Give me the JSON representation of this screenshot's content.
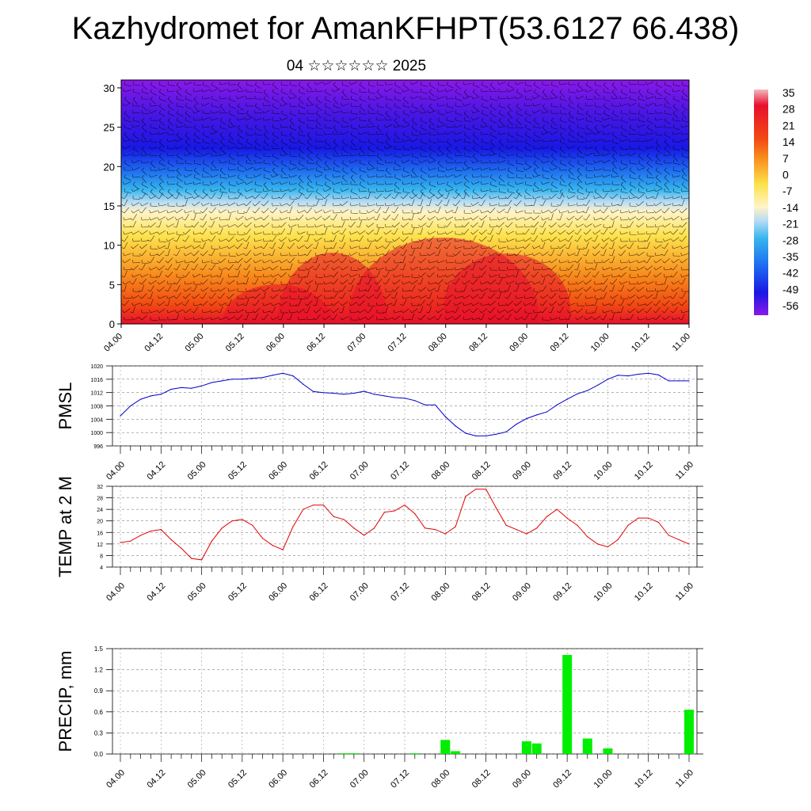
{
  "title": "Kazhydromet for AmanKFHPT(53.6127 66.438)",
  "subtitle": "04 ☆☆☆☆☆☆ 2025",
  "time_labels": [
    "04.00",
    "04.12",
    "05.00",
    "05.12",
    "06.00",
    "06.12",
    "07.00",
    "07.12",
    "08.00",
    "08.12",
    "09.00",
    "09.12",
    "10.00",
    "10.12",
    "11.00"
  ],
  "chart_data": [
    {
      "type": "heatmap",
      "name": "cross-section",
      "y_ticks": [
        0,
        5,
        10,
        15,
        20,
        25,
        30
      ],
      "ylim": [
        0,
        31
      ],
      "colorbar": {
        "labels": [
          "35",
          "28",
          "21",
          "14",
          "7",
          "0",
          "-7",
          "-14",
          "-21",
          "-28",
          "-35",
          "-42",
          "-49",
          "-56"
        ],
        "colors": {
          "top": "#f4b8bf",
          "warm1": "#e8102c",
          "warm2": "#f24a13",
          "warm3": "#f88a1c",
          "mid": "#fde24c",
          "pale": "#fff4c8",
          "cool1": "#b9dcf4",
          "cool2": "#36b5ee",
          "cool3": "#1e6cf0",
          "cold1": "#1818e4",
          "cold2": "#4816e4",
          "bottom": "#8a18e8"
        }
      }
    },
    {
      "type": "line",
      "name": "PMSL",
      "ylabel": "PMSL",
      "ylim": [
        996,
        1020
      ],
      "y_ticks": [
        996,
        1000,
        1004,
        1008,
        1012,
        1016,
        1020
      ],
      "x": [
        0,
        3,
        6,
        9,
        12,
        15,
        18,
        21,
        24,
        27,
        30,
        33,
        36,
        39,
        42,
        45,
        48,
        51,
        54,
        57,
        60,
        63,
        66,
        69,
        72,
        75,
        78,
        81,
        84,
        87,
        90,
        93,
        96,
        99,
        102,
        105,
        108,
        111,
        114,
        117,
        120,
        123,
        126,
        129,
        132,
        135,
        138,
        141,
        144,
        147,
        150,
        153,
        156,
        159,
        162,
        165,
        168
      ],
      "values": [
        1005,
        1008,
        1010,
        1011,
        1011.5,
        1013,
        1013.5,
        1013.3,
        1014,
        1015,
        1015.5,
        1016,
        1016,
        1016.3,
        1016.5,
        1017.2,
        1017.8,
        1017,
        1014.5,
        1012.3,
        1012,
        1011.8,
        1011.5,
        1011.8,
        1012.4,
        1011.5,
        1011,
        1010.5,
        1010.3,
        1009.6,
        1008.3,
        1008.3,
        1004.8,
        1002,
        999.8,
        999,
        999,
        999.5,
        1000.2,
        1002.5,
        1004.2,
        1005.3,
        1006.2,
        1008.3,
        1010,
        1011.6,
        1012.6,
        1014.2,
        1016,
        1017.2,
        1017,
        1017.5,
        1017.8,
        1017.3,
        1015.5,
        1015.5,
        1015.5
      ],
      "color": "#0000cc"
    },
    {
      "type": "line",
      "name": "TEMP at 2 M",
      "ylabel": "TEMP at 2 M",
      "ylim": [
        4,
        32
      ],
      "y_ticks": [
        4,
        8,
        12,
        16,
        20,
        24,
        28,
        32
      ],
      "x": [
        0,
        3,
        6,
        9,
        12,
        15,
        18,
        21,
        24,
        27,
        30,
        33,
        36,
        39,
        42,
        45,
        48,
        51,
        54,
        57,
        60,
        63,
        66,
        69,
        72,
        75,
        78,
        81,
        84,
        87,
        90,
        93,
        96,
        99,
        102,
        105,
        108,
        111,
        114,
        117,
        120,
        123,
        126,
        129,
        132,
        135,
        138,
        141,
        144,
        147,
        150,
        153,
        156,
        159,
        162,
        165,
        168
      ],
      "values": [
        12.5,
        13,
        15,
        16.5,
        17,
        13.5,
        10.5,
        7,
        6.5,
        13,
        17.5,
        20,
        20.5,
        18.5,
        14,
        11.5,
        10,
        18,
        24,
        25.5,
        25.5,
        21.5,
        20.5,
        17.5,
        15,
        17.5,
        23,
        23.5,
        25.5,
        22.5,
        17.5,
        17,
        15.5,
        18,
        28.5,
        31,
        31,
        24.5,
        18.5,
        17,
        15.5,
        17.5,
        21.5,
        24,
        21,
        18.5,
        14.5,
        12,
        11,
        13.5,
        18.5,
        21,
        21,
        19.5,
        15,
        13.5,
        12
      ],
      "color": "#e00000"
    },
    {
      "type": "bar",
      "name": "PRECIP",
      "ylabel": "PRECIP, mm",
      "ylim": [
        0,
        1.5
      ],
      "y_ticks": [
        "0.0",
        "0.3",
        "0.6",
        "0.9",
        "1.2",
        "1.5"
      ],
      "x": [
        66,
        69,
        87,
        96,
        99,
        120,
        123,
        132,
        138,
        144,
        168
      ],
      "values": [
        0.01,
        0.01,
        0.01,
        0.2,
        0.04,
        0.18,
        0.15,
        1.41,
        0.22,
        0.08,
        0.63
      ],
      "color": "#00ee00"
    }
  ]
}
